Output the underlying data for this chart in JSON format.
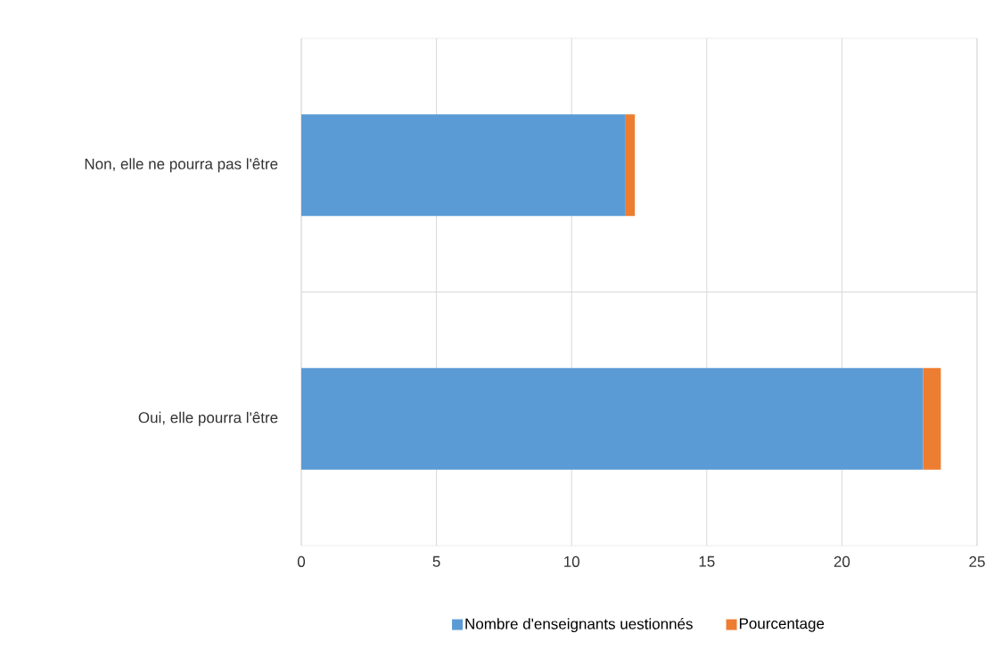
{
  "chart_data": {
    "type": "bar",
    "orientation": "horizontal",
    "stacked": true,
    "categories": [
      "Non, elle ne pourra pas l'être",
      "Oui, elle pourra l'être"
    ],
    "series": [
      {
        "name": "Nombre d'enseignants uestionnés",
        "color": "#5b9bd5",
        "values": [
          12,
          23
        ]
      },
      {
        "name": "Pourcentage",
        "color": "#ed7d31",
        "values": [
          0.34,
          0.66
        ]
      }
    ],
    "xlim": [
      0,
      25
    ],
    "xticks": [
      0,
      5,
      10,
      15,
      20,
      25
    ],
    "grid": true,
    "legend": "bottom"
  }
}
